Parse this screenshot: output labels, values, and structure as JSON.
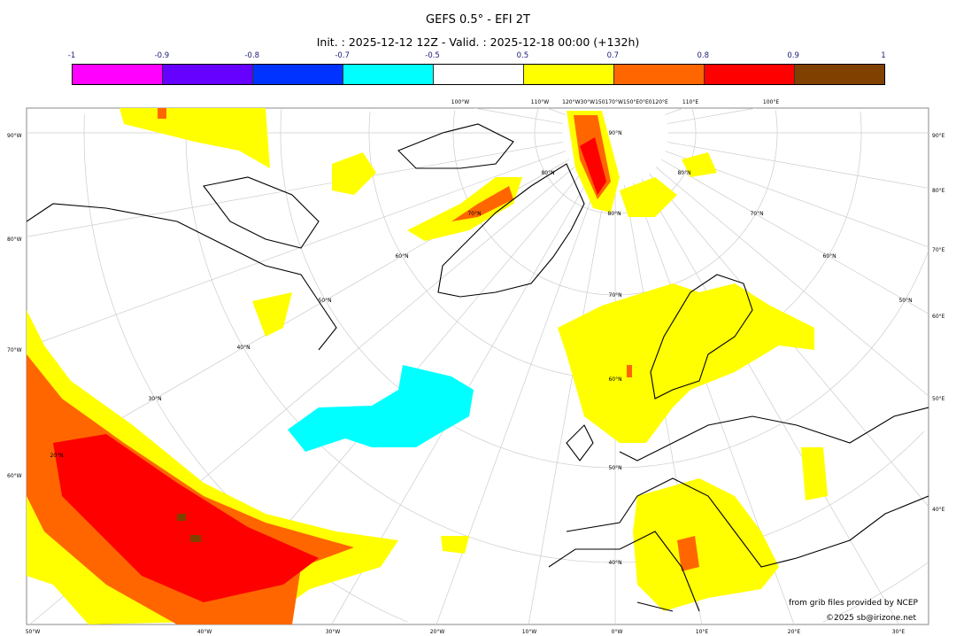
{
  "title": "GEFS 0.5° - EFI 2T",
  "subtitle": "Init. : 2025-12-12 12Z - Valid. : 2025-12-18 00:00 (+132h)",
  "colorbar": {
    "ticks": [
      "-1",
      "-0.9",
      "-0.8",
      "-0.7",
      "-0.5",
      "0.5",
      "0.7",
      "0.8",
      "0.9",
      "1"
    ],
    "colors": [
      "#ff00ff",
      "#6600ff",
      "#0033ff",
      "#00ffff",
      "#ffffff",
      "#ffff00",
      "#ff6600",
      "#ff0000",
      "#804000"
    ]
  },
  "map": {
    "left_labels": [
      "90°W",
      "80°W",
      "70°W",
      "60°W"
    ],
    "right_labels": [
      "90°E",
      "80°E",
      "70°E",
      "60°E",
      "50°E",
      "40°E"
    ],
    "bottom_labels": [
      "50°W",
      "40°W",
      "30°W",
      "20°W",
      "10°W",
      "0°W",
      "10°E",
      "20°E",
      "30°E"
    ],
    "top_labels": [
      "100°W",
      "110°W",
      "120°W30°W150170°W150°E0°E0120°E",
      "110°E",
      "100°E"
    ],
    "lat_labels": [
      "90°N",
      "80°N",
      "80°N",
      "80°N",
      "70°N",
      "70°N",
      "70°N",
      "60°N",
      "60°N",
      "60°N",
      "50°N",
      "50°N",
      "50°N",
      "40°N",
      "40°N",
      "30°N",
      "20°N"
    ]
  },
  "credits": {
    "source": "from grib files provided by NCEP",
    "copyright": "©2025 sb@irizone.net"
  }
}
